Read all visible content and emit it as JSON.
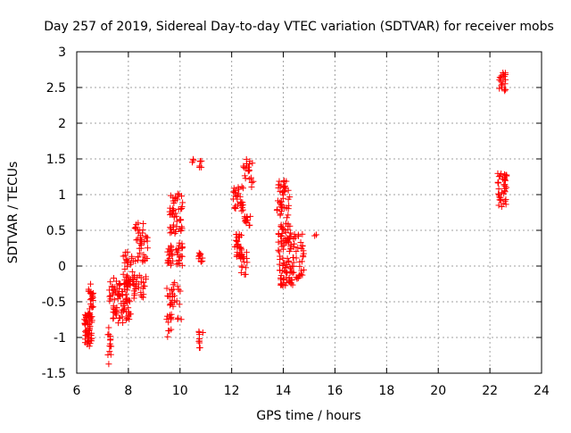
{
  "chart_data": {
    "type": "scatter",
    "title": "Day 257 of 2019, Sidereal Day-to-day VTEC variation (SDTVAR) for receiver mobs",
    "xlabel": "GPS time / hours",
    "ylabel": "SDTVAR / TECUs",
    "xlim": [
      6,
      24
    ],
    "ylim": [
      -1.5,
      3
    ],
    "xticks": [
      6,
      8,
      10,
      12,
      14,
      16,
      18,
      20,
      22,
      24
    ],
    "yticks": [
      -1.5,
      -1,
      -0.5,
      0,
      0.5,
      1,
      1.5,
      2,
      2.5,
      3
    ],
    "xtick_labels": [
      "6",
      "8",
      "10",
      "12",
      "14",
      "16",
      "18",
      "20",
      "22",
      "24"
    ],
    "ytick_labels": [
      "-1.5",
      "-1",
      "-0.5",
      "0",
      "0.5",
      "1",
      "1.5",
      "2",
      "2.5",
      "3"
    ],
    "grid": true,
    "marker": "+",
    "marker_color": "#ff0000",
    "series": [
      {
        "name": "SDTVAR",
        "clusters": [
          {
            "x": [
              6.3,
              6.6
            ],
            "y": [
              -1.15,
              -0.65
            ],
            "n": 60
          },
          {
            "x": [
              6.45,
              6.65
            ],
            "y": [
              -0.6,
              -0.22
            ],
            "n": 20
          },
          {
            "x": [
              7.2,
              7.35
            ],
            "y": [
              -1.38,
              -0.8
            ],
            "n": 14
          },
          {
            "x": [
              7.25,
              7.45
            ],
            "y": [
              -0.5,
              -0.15
            ],
            "n": 10
          },
          {
            "x": [
              7.4,
              8.1
            ],
            "y": [
              -0.8,
              -0.2
            ],
            "n": 80
          },
          {
            "x": [
              7.8,
              8.2
            ],
            "y": [
              -0.3,
              0.25
            ],
            "n": 30
          },
          {
            "x": [
              8.2,
              8.7
            ],
            "y": [
              -0.45,
              -0.1
            ],
            "n": 30
          },
          {
            "x": [
              8.25,
              8.75
            ],
            "y": [
              0.05,
              0.62
            ],
            "n": 40
          },
          {
            "x": [
              9.45,
              9.7
            ],
            "y": [
              -1.0,
              -0.3
            ],
            "n": 20
          },
          {
            "x": [
              9.5,
              9.75
            ],
            "y": [
              0.0,
              0.3
            ],
            "n": 20
          },
          {
            "x": [
              9.6,
              10.1
            ],
            "y": [
              0.45,
              1.02
            ],
            "n": 50
          },
          {
            "x": [
              9.6,
              10.05
            ],
            "y": [
              -0.75,
              -0.15
            ],
            "n": 20
          },
          {
            "x": [
              9.85,
              10.1
            ],
            "y": [
              0.0,
              0.35
            ],
            "n": 20
          },
          {
            "x": [
              10.45,
              10.55
            ],
            "y": [
              1.42,
              1.5
            ],
            "n": 3
          },
          {
            "x": [
              10.75,
              10.85
            ],
            "y": [
              1.38,
              1.5
            ],
            "n": 6
          },
          {
            "x": [
              10.7,
              10.9
            ],
            "y": [
              0.05,
              0.2
            ],
            "n": 10
          },
          {
            "x": [
              10.7,
              10.9
            ],
            "y": [
              -1.22,
              -0.9
            ],
            "n": 10
          },
          {
            "x": [
              12.05,
              12.45
            ],
            "y": [
              0.75,
              1.12
            ],
            "n": 30
          },
          {
            "x": [
              12.1,
              12.4
            ],
            "y": [
              0.1,
              0.45
            ],
            "n": 30
          },
          {
            "x": [
              12.45,
              12.85
            ],
            "y": [
              1.1,
              1.5
            ],
            "n": 20
          },
          {
            "x": [
              12.3,
              12.6
            ],
            "y": [
              -0.15,
              0.2
            ],
            "n": 15
          },
          {
            "x": [
              12.5,
              12.75
            ],
            "y": [
              0.55,
              0.72
            ],
            "n": 15
          },
          {
            "x": [
              13.75,
              14.25
            ],
            "y": [
              0.65,
              1.2
            ],
            "n": 40
          },
          {
            "x": [
              13.8,
              14.3
            ],
            "y": [
              0.2,
              0.6
            ],
            "n": 40
          },
          {
            "x": [
              13.8,
              14.4
            ],
            "y": [
              -0.28,
              0.15
            ],
            "n": 50
          },
          {
            "x": [
              14.25,
              14.8
            ],
            "y": [
              -0.2,
              0.45
            ],
            "n": 40
          },
          {
            "x": [
              15.2,
              15.3
            ],
            "y": [
              0.28,
              0.48
            ],
            "n": 2
          },
          {
            "x": [
              22.35,
              22.65
            ],
            "y": [
              2.45,
              2.75
            ],
            "n": 20
          },
          {
            "x": [
              22.3,
              22.65
            ],
            "y": [
              0.8,
              1.3
            ],
            "n": 40
          }
        ]
      }
    ]
  }
}
